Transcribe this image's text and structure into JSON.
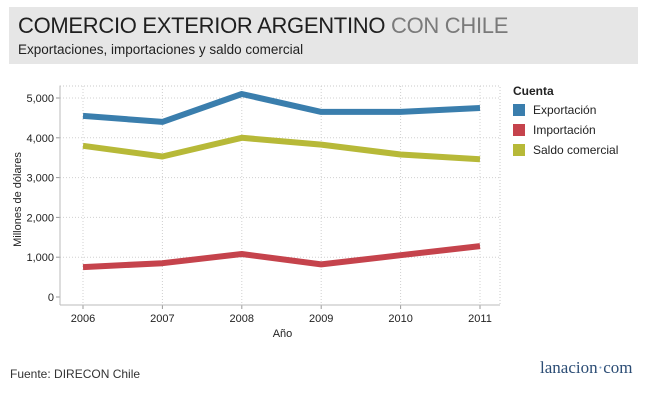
{
  "header": {
    "title_main": "COMERCIO EXTERIOR ARGENTINO",
    "title_accent": "CON CHILE",
    "subtitle": "Exportaciones, importaciones y saldo comercial"
  },
  "legend": {
    "title": "Cuenta",
    "items": [
      {
        "label": "Exportación",
        "color": "#3a7ead"
      },
      {
        "label": "Importación",
        "color": "#c5434c"
      },
      {
        "label": "Saldo comercial",
        "color": "#b7b938"
      }
    ]
  },
  "footer": {
    "source": "Fuente: DIRECON Chile",
    "brand_main": "lanacion",
    "brand_dot": "·",
    "brand_tail": "com"
  },
  "chart_data": {
    "type": "line",
    "x": [
      2006,
      2007,
      2008,
      2009,
      2010,
      2011
    ],
    "x_tick_labels": [
      "2006",
      "2007",
      "2008",
      "2009",
      "2010",
      "2011"
    ],
    "xlabel": "Año",
    "ylabel": "Millones de dólares",
    "ylim": [
      0,
      5300
    ],
    "y_ticks": [
      0,
      1000,
      2000,
      3000,
      4000,
      5000
    ],
    "y_tick_labels": [
      "0",
      "1,000",
      "2,000",
      "3,000",
      "4,000",
      "5,000"
    ],
    "grid": true,
    "legend_position": "right",
    "series": [
      {
        "name": "Exportación",
        "color": "#3a7ead",
        "values": [
          4550,
          4400,
          5100,
          4650,
          4650,
          4750
        ]
      },
      {
        "name": "Importación",
        "color": "#c5434c",
        "values": [
          750,
          850,
          1080,
          820,
          1050,
          1280
        ]
      },
      {
        "name": "Saldo comercial",
        "color": "#b7b938",
        "values": [
          3800,
          3530,
          4000,
          3830,
          3580,
          3460
        ]
      }
    ]
  }
}
